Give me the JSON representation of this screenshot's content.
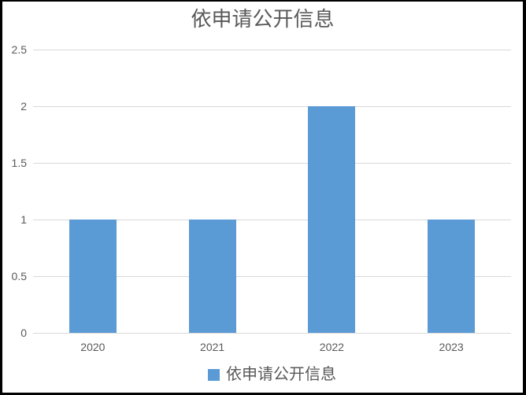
{
  "chart_data": {
    "type": "bar",
    "title": "依申请公开信息",
    "categories": [
      "2020",
      "2021",
      "2022",
      "2023"
    ],
    "series": [
      {
        "name": "依申请公开信息",
        "values": [
          1,
          1,
          2,
          1
        ]
      }
    ],
    "xlabel": "",
    "ylabel": "",
    "ylim": [
      0,
      2.5
    ],
    "ytick_interval": 0.5,
    "ytick_labels": [
      "0",
      "0.5",
      "1",
      "1.5",
      "2",
      "2.5"
    ],
    "grid": true,
    "legend_position": "bottom",
    "colors": {
      "bar": "#5B9BD5",
      "gridline": "#D9D9D9",
      "axis_text": "#595959",
      "title_text": "#595959",
      "legend_text": "#595959",
      "background": "#FFFFFF",
      "frame_border": "#000000"
    }
  }
}
